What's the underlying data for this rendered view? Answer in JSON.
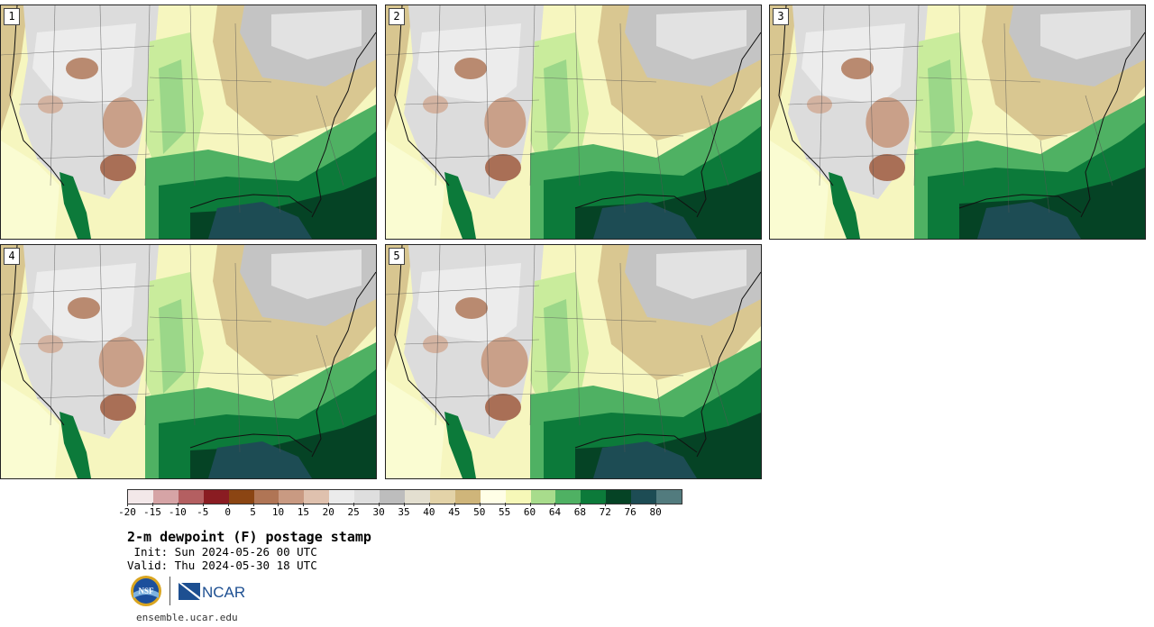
{
  "panels": [
    {
      "label": "1",
      "variant": 1
    },
    {
      "label": "2",
      "variant": 2
    },
    {
      "label": "3",
      "variant": 3
    },
    {
      "label": "4",
      "variant": 4
    },
    {
      "label": "5",
      "variant": 5
    }
  ],
  "colorbar": {
    "colors": [
      "#f3e8e9",
      "#d6a4a6",
      "#b45f61",
      "#8a1c22",
      "#8b4513",
      "#b07555",
      "#c99a82",
      "#dfc1ae",
      "#ebebeb",
      "#dedede",
      "#bdbdbd",
      "#e3dfd0",
      "#e3d3a8",
      "#cfb57a",
      "#fffee6",
      "#f6f8b8",
      "#a8dc8c",
      "#4fb163",
      "#0c7a3a",
      "#054325",
      "#1d4c54",
      "#527b7e"
    ],
    "tick_labels": [
      "-20",
      "-15",
      "-10",
      "-5",
      "0",
      "5",
      "10",
      "15",
      "20",
      "25",
      "30",
      "35",
      "40",
      "45",
      "50",
      "55",
      "60",
      "64",
      "68",
      "72",
      "76",
      "80"
    ]
  },
  "title": "2-m dewpoint (F) postage stamp",
  "init": " Init: Sun 2024-05-26 00 UTC",
  "valid": "Valid: Thu 2024-05-30 18 UTC",
  "logos": {
    "nsf": "NSF",
    "ncar": "NCAR"
  },
  "site": "ensemble.ucar.edu"
}
